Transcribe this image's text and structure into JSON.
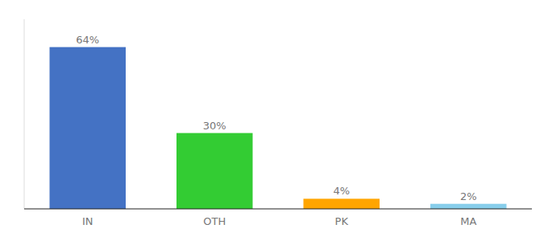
{
  "chart_data": {
    "type": "bar",
    "categories": [
      "IN",
      "OTH",
      "PK",
      "MA"
    ],
    "values": [
      64,
      30,
      4,
      2
    ],
    "value_labels": [
      "64%",
      "30%",
      "4%",
      "2%"
    ],
    "colors": [
      "#4472C4",
      "#33CC33",
      "#FFA500",
      "#87CEEB"
    ],
    "ylim": [
      0,
      75
    ],
    "data_labels": true,
    "tick_labels": "x"
  }
}
